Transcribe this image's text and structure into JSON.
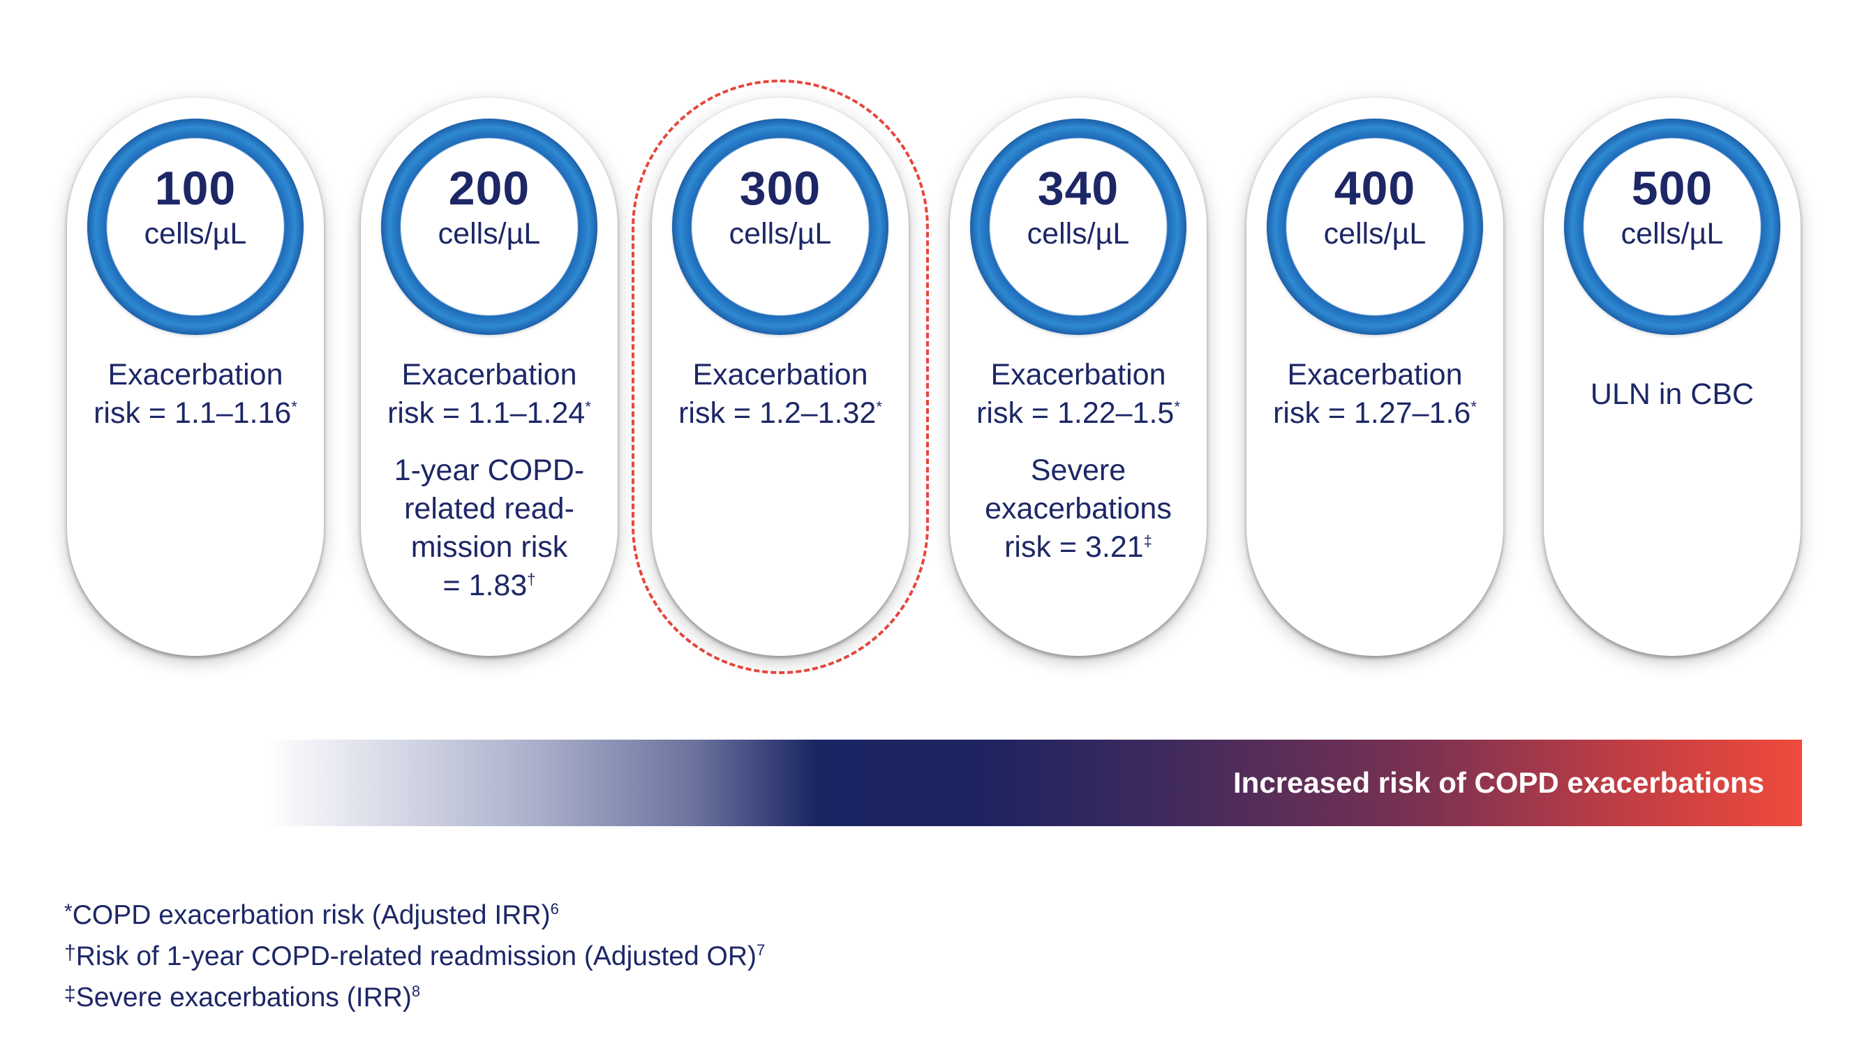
{
  "unit_label": "cells/µL",
  "levels": [
    {
      "count": "100",
      "descriptions": [
        {
          "text": "Exacerbation\nrisk = 1.1–1.16",
          "mark": "*"
        }
      ]
    },
    {
      "count": "200",
      "descriptions": [
        {
          "text": "Exacerbation\nrisk = 1.1–1.24",
          "mark": "*"
        },
        {
          "text": "1-year COPD-\nrelated read-\nmission risk\n= 1.83",
          "mark": "†"
        }
      ]
    },
    {
      "count": "300",
      "highlighted": true,
      "descriptions": [
        {
          "text": "Exacerbation\nrisk = 1.2–1.32",
          "mark": "*"
        }
      ]
    },
    {
      "count": "340",
      "descriptions": [
        {
          "text": "Exacerbation\nrisk = 1.22–1.5",
          "mark": "*"
        },
        {
          "text": "Severe\nexacerbations\nrisk = 3.21",
          "mark": "‡"
        }
      ]
    },
    {
      "count": "400",
      "descriptions": [
        {
          "text": "Exacerbation\nrisk = 1.27–1.6",
          "mark": "*"
        }
      ]
    },
    {
      "count": "500",
      "descriptions": [
        {
          "text": "ULN in CBC",
          "mark": ""
        }
      ]
    }
  ],
  "risk_bar": {
    "label": "Increased risk of COPD exacerbations"
  },
  "footnotes": [
    {
      "symbol": "*",
      "text": "COPD exacerbation risk (Adjusted IRR)",
      "ref": "6"
    },
    {
      "symbol": "†",
      "text": "Risk of 1-year COPD-related readmission (Adjusted OR)",
      "ref": "7"
    },
    {
      "symbol": "‡",
      "text": "Severe exacerbations (IRR)",
      "ref": "8"
    }
  ],
  "colors": {
    "navy_text": "#1d2766",
    "ring_blue": "#2f8ad3",
    "highlight_red": "#e8473c",
    "bar_end_red": "#ef4b3b"
  }
}
